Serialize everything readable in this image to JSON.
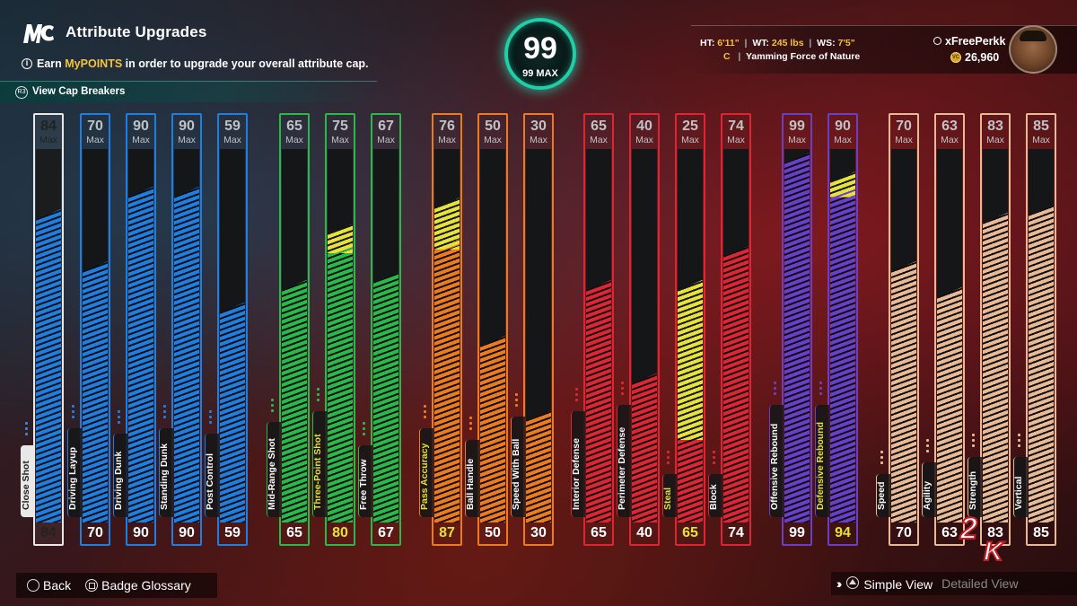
{
  "header": {
    "title": "Attribute Upgrades",
    "subtitle_pre": "Earn ",
    "subtitle_highlight": "MyPOINTS",
    "subtitle_post": " in order to upgrade your overall attribute cap.",
    "cap_breakers_label": "View Cap Breakers"
  },
  "overall": {
    "value": "99",
    "max_label": "99 MAX"
  },
  "player": {
    "ht_label": "HT:",
    "ht": "6'11\"",
    "wt_label": "WT:",
    "wt": "245 lbs",
    "ws_label": "WS:",
    "ws": "7'5\"",
    "position": "C",
    "archetype": "Yamming Force of Nature",
    "username": "xFreePerkk",
    "vc": "26,960"
  },
  "max_word": "Max",
  "colors": {
    "white": "#e8e8e8",
    "blue": "#1f7ee0",
    "green": "#2bb84a",
    "orange": "#ec7a1f",
    "red": "#df2533",
    "purple": "#6a3fc7",
    "tan": "#e9b894",
    "boost": "#e6e23a",
    "accent": "#1fcfa8"
  },
  "attributes": [
    {
      "name": "Close Shot",
      "max": "84",
      "current": "84",
      "value": 84,
      "boost": 0,
      "color": "white"
    },
    {
      "name": "Driving Layup",
      "max": "70",
      "current": "70",
      "value": 70,
      "boost": 0,
      "color": "blue"
    },
    {
      "name": "Driving Dunk",
      "max": "90",
      "current": "90",
      "value": 90,
      "boost": 0,
      "color": "blue"
    },
    {
      "name": "Standing Dunk",
      "max": "90",
      "current": "90",
      "value": 90,
      "boost": 0,
      "color": "blue"
    },
    {
      "name": "Post Control",
      "max": "59",
      "current": "59",
      "value": 59,
      "boost": 0,
      "color": "blue"
    },
    {
      "name": "Mid-Range Shot",
      "max": "65",
      "current": "65",
      "value": 65,
      "boost": 0,
      "color": "green"
    },
    {
      "name": "Three-Point Shot",
      "max": "75",
      "current": "80",
      "value": 75,
      "boost": 5,
      "color": "green"
    },
    {
      "name": "Free Throw",
      "max": "67",
      "current": "67",
      "value": 67,
      "boost": 0,
      "color": "green"
    },
    {
      "name": "Pass Accuracy",
      "max": "76",
      "current": "87",
      "value": 76,
      "boost": 11,
      "color": "orange"
    },
    {
      "name": "Ball Handle",
      "max": "50",
      "current": "50",
      "value": 50,
      "boost": 0,
      "color": "orange"
    },
    {
      "name": "Speed With Ball",
      "max": "30",
      "current": "30",
      "value": 30,
      "boost": 0,
      "color": "orange"
    },
    {
      "name": "Interior Defense",
      "max": "65",
      "current": "65",
      "value": 65,
      "boost": 0,
      "color": "red"
    },
    {
      "name": "Perimeter Defense",
      "max": "40",
      "current": "40",
      "value": 40,
      "boost": 0,
      "color": "red"
    },
    {
      "name": "Steal",
      "max": "25",
      "current": "65",
      "value": 25,
      "boost": 40,
      "color": "red"
    },
    {
      "name": "Block",
      "max": "74",
      "current": "74",
      "value": 74,
      "boost": 0,
      "color": "red"
    },
    {
      "name": "Offensive Rebound",
      "max": "99",
      "current": "99",
      "value": 99,
      "boost": 0,
      "color": "purple"
    },
    {
      "name": "Defensive Rebound",
      "max": "90",
      "current": "94",
      "value": 90,
      "boost": 4,
      "color": "purple"
    },
    {
      "name": "Speed",
      "max": "70",
      "current": "70",
      "value": 70,
      "boost": 0,
      "color": "tan"
    },
    {
      "name": "Agility",
      "max": "63",
      "current": "63",
      "value": 63,
      "boost": 0,
      "color": "tan"
    },
    {
      "name": "Strength",
      "max": "83",
      "current": "83",
      "value": 83,
      "boost": 0,
      "color": "tan"
    },
    {
      "name": "Vertical",
      "max": "85",
      "current": "85",
      "value": 85,
      "boost": 0,
      "color": "tan"
    }
  ],
  "footer": {
    "back": "Back",
    "glossary": "Badge Glossary",
    "simple_view": "Simple View",
    "detailed_view": "Detailed View"
  }
}
